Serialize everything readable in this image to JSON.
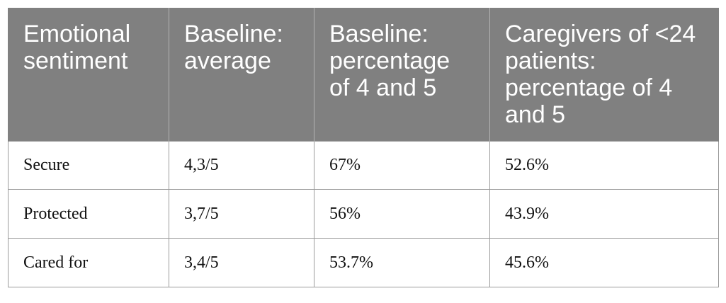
{
  "table": {
    "headers": [
      "Emotional sentiment",
      "Baseline: average",
      "Baseline: percentage of 4 and 5",
      "Caregivers of <24 patients: percentage of 4 and 5"
    ],
    "rows": [
      [
        "Secure",
        "4,3/5",
        "67%",
        "52.6%"
      ],
      [
        "Protected",
        "3,7/5",
        "56%",
        "43.9%"
      ],
      [
        "Cared for",
        "3,4/5",
        "53.7%",
        "45.6%"
      ]
    ],
    "colors": {
      "header_bg": "#808080",
      "header_text": "#ffffff",
      "border": "#9a9a9a"
    }
  }
}
